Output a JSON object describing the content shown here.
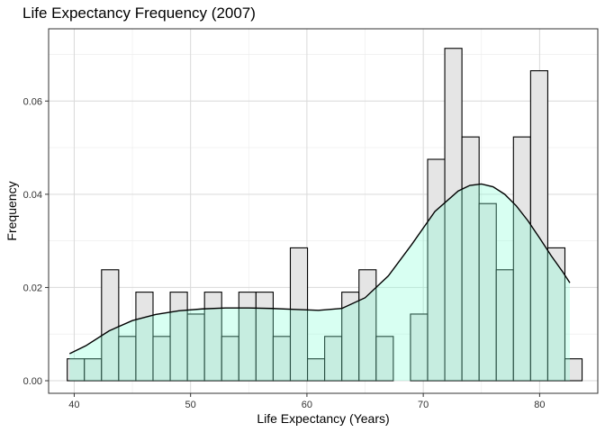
{
  "chart_data": {
    "type": "bar",
    "title": "Life Expectancy Frequency (2007)",
    "xlabel": "Life Expectancy (Years)",
    "ylabel": "Frequency",
    "xlim": [
      37.8,
      85.0
    ],
    "ylim": [
      -0.0027,
      0.0755
    ],
    "x_ticks": [
      40,
      50,
      60,
      70,
      80
    ],
    "y_ticks": [
      0.0,
      0.02,
      0.04,
      0.06
    ],
    "y_tick_labels": [
      "0.00",
      "0.02",
      "0.04",
      "0.06"
    ],
    "grid": true,
    "histogram": {
      "bin_width": 1.475,
      "bin_start": 39.4,
      "values": [
        0.0047,
        0.0047,
        0.0238,
        0.0095,
        0.019,
        0.0095,
        0.019,
        0.0143,
        0.019,
        0.0095,
        0.019,
        0.019,
        0.0095,
        0.0285,
        0.0047,
        0.0095,
        0.019,
        0.0238,
        0.0095,
        0.0,
        0.0143,
        0.0475,
        0.0713,
        0.0523,
        0.038,
        0.0238,
        0.0523,
        0.0665,
        0.0285,
        0.0047
      ],
      "fill": "#e5e5e5",
      "stroke": "#000000"
    },
    "density": {
      "x": [
        39.6,
        41,
        43,
        45,
        47,
        49,
        51,
        53,
        55,
        57,
        59,
        61,
        63,
        65,
        67,
        69,
        71,
        73,
        74,
        75,
        76,
        77,
        78,
        79,
        80,
        81,
        82,
        82.6
      ],
      "y": [
        0.0058,
        0.0075,
        0.0107,
        0.0129,
        0.0142,
        0.015,
        0.0154,
        0.0156,
        0.0156,
        0.0155,
        0.0153,
        0.0151,
        0.0155,
        0.0178,
        0.0225,
        0.0292,
        0.0363,
        0.0407,
        0.0419,
        0.0422,
        0.0416,
        0.04,
        0.0375,
        0.0343,
        0.0306,
        0.0268,
        0.0233,
        0.021
      ],
      "fill": "#7fffd4",
      "fill_opacity": 0.3,
      "stroke": "#000000"
    }
  }
}
